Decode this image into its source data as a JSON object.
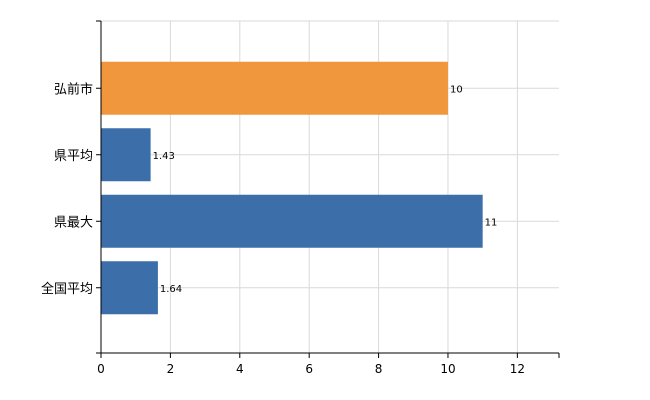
{
  "chart_data": {
    "type": "bar",
    "orientation": "horizontal",
    "categories": [
      "弘前市",
      "県平均",
      "県最大",
      "全国平均"
    ],
    "values": [
      10,
      1.43,
      11,
      1.64
    ],
    "data_labels": [
      "10",
      "1.43",
      "11",
      "1.64"
    ],
    "bar_colors": [
      "#f0963c",
      "#3c6eaa",
      "#3c6eaa",
      "#3c6eaa"
    ],
    "xlim": [
      0,
      13.2
    ],
    "xticks": [
      0,
      2,
      4,
      6,
      8,
      10,
      12
    ],
    "grid": true,
    "legend": "none"
  }
}
